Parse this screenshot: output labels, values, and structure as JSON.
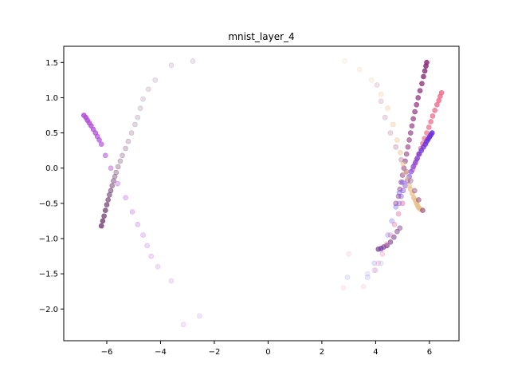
{
  "chart_data": {
    "type": "scatter",
    "title": "mnist_layer_4",
    "xlabel": "",
    "ylabel": "",
    "xlim": [
      -7.6,
      7.1
    ],
    "ylim": [
      -2.45,
      1.73
    ],
    "xticks": [
      -6,
      -4,
      -2,
      0,
      2,
      4,
      6
    ],
    "xtick_labels": [
      "−6",
      "−4",
      "−2",
      "0",
      "2",
      "4",
      "6"
    ],
    "yticks": [
      -2.0,
      -1.5,
      -1.0,
      -0.5,
      0.0,
      0.5,
      1.0,
      1.5
    ],
    "ytick_labels": [
      "−2.0",
      "−1.5",
      "−1.0",
      "−0.5",
      "0.0",
      "0.5",
      "1.0",
      "1.5"
    ],
    "grid": false,
    "series": [
      {
        "color": "#b14fd9",
        "x": [
          -6.85,
          -6.78,
          -6.72,
          -6.65,
          -6.58,
          -6.5,
          -6.42,
          -6.35,
          -6.28,
          -6.2,
          -6.05,
          -5.85,
          -5.6,
          -5.3,
          -5.05,
          -4.85,
          -4.65,
          -4.5,
          -4.35,
          -4.1,
          -3.6,
          -3.15,
          -2.55
        ],
        "y": [
          0.75,
          0.72,
          0.68,
          0.64,
          0.6,
          0.55,
          0.5,
          0.45,
          0.4,
          0.34,
          0.18,
          0.0,
          -0.22,
          -0.42,
          -0.62,
          -0.8,
          -0.95,
          -1.1,
          -1.25,
          -1.4,
          -1.6,
          -2.22,
          -2.1
        ],
        "opacity": [
          0.85,
          0.85,
          0.85,
          0.8,
          0.8,
          0.75,
          0.75,
          0.7,
          0.7,
          0.65,
          0.55,
          0.45,
          0.35,
          0.3,
          0.28,
          0.26,
          0.24,
          0.22,
          0.2,
          0.18,
          0.16,
          0.15,
          0.14
        ]
      },
      {
        "color": "#7a4a78",
        "x": [
          -6.2,
          -6.15,
          -6.1,
          -6.05,
          -6.0,
          -5.95,
          -5.9,
          -5.85,
          -5.8,
          -5.75,
          -5.7,
          -5.65,
          -5.58,
          -5.5,
          -5.42,
          -5.3,
          -5.2,
          -5.08,
          -4.95,
          -4.85,
          -4.75,
          -4.65,
          -4.45,
          -4.2,
          -3.6,
          -2.8
        ],
        "y": [
          -0.82,
          -0.75,
          -0.68,
          -0.6,
          -0.52,
          -0.45,
          -0.38,
          -0.32,
          -0.25,
          -0.18,
          -0.12,
          -0.06,
          0.02,
          0.1,
          0.18,
          0.28,
          0.38,
          0.5,
          0.62,
          0.72,
          0.85,
          0.98,
          1.12,
          1.25,
          1.46,
          1.52
        ],
        "opacity": [
          0.85,
          0.85,
          0.8,
          0.8,
          0.75,
          0.7,
          0.65,
          0.6,
          0.55,
          0.5,
          0.45,
          0.4,
          0.36,
          0.32,
          0.3,
          0.28,
          0.26,
          0.24,
          0.22,
          0.2,
          0.19,
          0.18,
          0.17,
          0.16,
          0.15,
          0.14
        ]
      },
      {
        "color": "#8b2c7a",
        "x": [
          5.9,
          5.87,
          5.83,
          5.78,
          5.72,
          5.65,
          5.58,
          5.52,
          5.46,
          5.4,
          5.35,
          5.3,
          5.25,
          5.2,
          5.15,
          5.1,
          5.05,
          5.0,
          4.95,
          4.9,
          4.85,
          4.75
        ],
        "y": [
          1.5,
          1.45,
          1.38,
          1.3,
          1.2,
          1.1,
          1.0,
          0.9,
          0.8,
          0.7,
          0.6,
          0.5,
          0.4,
          0.3,
          0.2,
          0.1,
          0.0,
          -0.1,
          -0.2,
          -0.3,
          -0.4,
          -0.5
        ],
        "opacity": [
          0.85,
          0.85,
          0.8,
          0.8,
          0.75,
          0.72,
          0.7,
          0.68,
          0.66,
          0.64,
          0.62,
          0.6,
          0.58,
          0.56,
          0.54,
          0.52,
          0.5,
          0.48,
          0.46,
          0.44,
          0.42,
          0.4
        ]
      },
      {
        "color": "#f0708f",
        "x": [
          6.45,
          6.4,
          6.35,
          6.28,
          6.2,
          6.12,
          6.05,
          5.98,
          5.9,
          5.82,
          5.75,
          5.68,
          5.6,
          5.52,
          5.45,
          5.38
        ],
        "y": [
          1.07,
          1.02,
          0.96,
          0.9,
          0.82,
          0.74,
          0.66,
          0.58,
          0.5,
          0.42,
          0.35,
          0.28,
          0.2,
          0.12,
          0.05,
          -0.02
        ],
        "opacity": [
          0.85,
          0.85,
          0.85,
          0.82,
          0.8,
          0.78,
          0.76,
          0.74,
          0.72,
          0.7,
          0.68,
          0.66,
          0.64,
          0.62,
          0.6,
          0.58
        ]
      },
      {
        "color": "#6a2fe0",
        "x": [
          6.1,
          6.05,
          6.0,
          5.95,
          5.9,
          5.85,
          5.78,
          5.7,
          5.62,
          5.55,
          5.48,
          5.4,
          5.32,
          5.25,
          5.18,
          5.1,
          5.02,
          4.95,
          4.88
        ],
        "y": [
          0.5,
          0.47,
          0.44,
          0.41,
          0.38,
          0.34,
          0.3,
          0.25,
          0.2,
          0.14,
          0.08,
          0.02,
          -0.05,
          -0.12,
          -0.18,
          -0.25,
          -0.32,
          -0.4,
          -0.5
        ],
        "opacity": [
          0.85,
          0.85,
          0.85,
          0.82,
          0.8,
          0.78,
          0.75,
          0.72,
          0.7,
          0.66,
          0.62,
          0.58,
          0.54,
          0.5,
          0.46,
          0.42,
          0.38,
          0.34,
          0.3
        ]
      },
      {
        "color": "#e8c28a",
        "x": [
          2.85,
          3.4,
          3.85,
          4.2,
          4.45,
          4.65,
          4.8,
          4.92,
          5.02,
          5.1,
          5.18,
          5.25,
          5.3,
          5.36,
          5.42,
          5.48,
          5.52,
          5.56,
          5.6,
          5.65
        ],
        "y": [
          1.52,
          1.4,
          1.25,
          1.05,
          0.85,
          0.62,
          0.4,
          0.22,
          0.06,
          -0.06,
          -0.16,
          -0.25,
          -0.3,
          -0.36,
          -0.42,
          -0.46,
          -0.5,
          -0.53,
          -0.56,
          -0.58
        ],
        "opacity": [
          0.14,
          0.16,
          0.2,
          0.25,
          0.3,
          0.35,
          0.4,
          0.45,
          0.5,
          0.55,
          0.6,
          0.65,
          0.7,
          0.75,
          0.8,
          0.85,
          0.85,
          0.85,
          0.85,
          0.85
        ]
      },
      {
        "color": "#a0527e",
        "x": [
          5.75,
          5.6,
          5.45,
          5.3,
          5.15,
          4.95,
          4.75,
          4.55,
          4.35,
          4.2,
          4.05
        ],
        "y": [
          -0.6,
          -0.45,
          -0.32,
          -0.18,
          -0.05,
          0.12,
          0.3,
          0.5,
          0.72,
          0.95,
          1.18
        ],
        "opacity": [
          0.7,
          0.6,
          0.5,
          0.42,
          0.36,
          0.3,
          0.26,
          0.22,
          0.2,
          0.18,
          0.16
        ]
      },
      {
        "color": "#7b3a8e",
        "x": [
          4.1,
          4.2,
          4.3,
          4.42,
          4.55,
          4.68,
          4.8,
          4.9
        ],
        "y": [
          -1.15,
          -1.14,
          -1.12,
          -1.1,
          -1.05,
          -0.98,
          -0.9,
          -0.85
        ],
        "opacity": [
          0.7,
          0.68,
          0.66,
          0.64,
          0.6,
          0.55,
          0.5,
          0.45
        ]
      },
      {
        "color": "#e06aa0",
        "x": [
          3.95,
          4.1,
          4.25,
          4.4,
          4.55,
          4.7,
          4.85,
          5.0
        ],
        "y": [
          -1.45,
          -1.35,
          -1.22,
          -1.08,
          -0.95,
          -0.8,
          -0.65,
          -0.5
        ],
        "opacity": [
          0.18,
          0.2,
          0.24,
          0.28,
          0.32,
          0.36,
          0.4,
          0.45
        ]
      },
      {
        "color": "#6d5cf0",
        "x": [
          3.7,
          3.95,
          4.2,
          4.45,
          4.6,
          4.75,
          4.88,
          5.0
        ],
        "y": [
          -1.55,
          -1.35,
          -1.15,
          -0.95,
          -0.75,
          -0.55,
          -0.35,
          -0.2
        ],
        "opacity": [
          0.15,
          0.18,
          0.22,
          0.26,
          0.3,
          0.34,
          0.38,
          0.42
        ]
      },
      {
        "color": "#f2a0b8",
        "x": [
          2.8,
          3.0,
          3.55
        ],
        "y": [
          -1.7,
          -1.22,
          -1.68
        ],
        "opacity": [
          0.18,
          0.2,
          0.18
        ]
      },
      {
        "color": "#8a8adf",
        "x": [
          2.95,
          3.7,
          4.0,
          4.2
        ],
        "y": [
          -1.55,
          -1.5,
          -1.45,
          -1.35
        ],
        "opacity": [
          0.18,
          0.16,
          0.16,
          0.16
        ]
      }
    ]
  }
}
